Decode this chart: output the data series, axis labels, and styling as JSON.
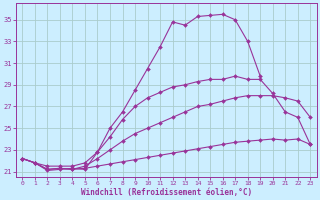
{
  "xlabel": "Windchill (Refroidissement éolien,°C)",
  "bg_color": "#cceeff",
  "grid_color": "#aacccc",
  "line_color": "#993399",
  "xlim": [
    -0.5,
    23.5
  ],
  "ylim": [
    20.5,
    36.5
  ],
  "yticks": [
    21,
    23,
    25,
    27,
    29,
    31,
    33,
    35
  ],
  "xticks": [
    0,
    1,
    2,
    3,
    4,
    5,
    6,
    7,
    8,
    9,
    10,
    11,
    12,
    13,
    14,
    15,
    16,
    17,
    18,
    19,
    20,
    21,
    22,
    23
  ],
  "lines": [
    {
      "x": [
        0,
        1,
        2,
        3,
        4,
        5,
        6,
        7,
        8,
        9,
        10,
        11,
        12,
        13,
        14,
        15,
        16,
        17,
        18,
        19
      ],
      "y": [
        22.2,
        21.8,
        21.1,
        21.2,
        21.3,
        21.2,
        22.8,
        25.0,
        26.5,
        28.5,
        30.5,
        32.5,
        34.8,
        34.5,
        35.3,
        35.4,
        35.5,
        35.0,
        33.0,
        29.8
      ]
    },
    {
      "x": [
        0,
        1,
        2,
        3,
        4,
        5,
        6,
        7,
        8,
        9,
        10,
        11,
        12,
        13,
        14,
        15,
        16,
        17,
        18,
        19,
        20,
        21,
        22,
        23
      ],
      "y": [
        22.2,
        21.8,
        21.5,
        21.5,
        21.5,
        21.8,
        22.8,
        24.2,
        25.8,
        27.0,
        27.8,
        28.3,
        28.8,
        29.0,
        29.3,
        29.5,
        29.5,
        29.8,
        29.5,
        29.5,
        28.2,
        26.5,
        26.0,
        23.5
      ]
    },
    {
      "x": [
        0,
        1,
        2,
        3,
        4,
        5,
        6,
        7,
        8,
        9,
        10,
        11,
        12,
        13,
        14,
        15,
        16,
        17,
        18,
        19,
        20,
        21,
        22,
        23
      ],
      "y": [
        22.2,
        21.8,
        21.2,
        21.3,
        21.2,
        21.5,
        22.2,
        23.0,
        23.8,
        24.5,
        25.0,
        25.5,
        26.0,
        26.5,
        27.0,
        27.2,
        27.5,
        27.8,
        28.0,
        28.0,
        28.0,
        27.8,
        27.5,
        26.0
      ]
    },
    {
      "x": [
        0,
        1,
        2,
        3,
        4,
        5,
        6,
        7,
        8,
        9,
        10,
        11,
        12,
        13,
        14,
        15,
        16,
        17,
        18,
        19,
        20,
        21,
        22,
        23
      ],
      "y": [
        22.2,
        21.8,
        21.2,
        21.3,
        21.2,
        21.3,
        21.5,
        21.7,
        21.9,
        22.1,
        22.3,
        22.5,
        22.7,
        22.9,
        23.1,
        23.3,
        23.5,
        23.7,
        23.8,
        23.9,
        24.0,
        23.9,
        24.0,
        23.5
      ]
    }
  ]
}
